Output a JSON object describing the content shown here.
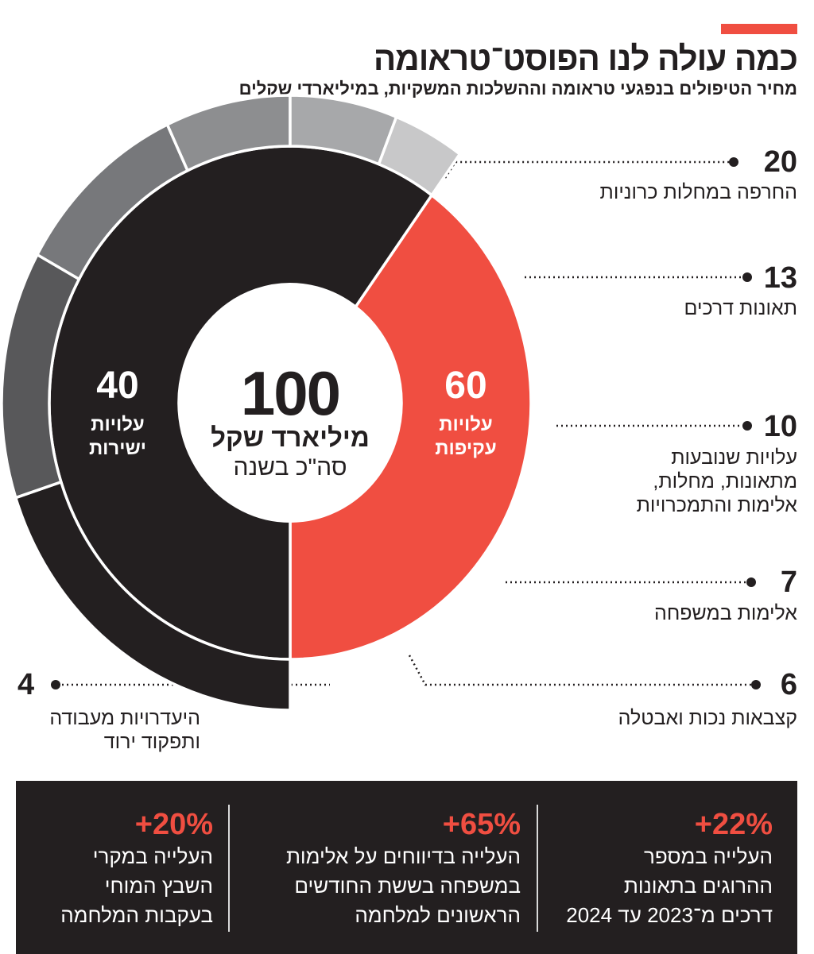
{
  "header": {
    "title": "כמה עולה לנו הפוסט־טראומה",
    "subtitle": "מחיר הטיפולים בנפגעי טראומה וההשלכות המשקיות, במיליארדי שקלים"
  },
  "colors": {
    "accent": "#f04e41",
    "dark": "#231f20"
  },
  "chart_data": {
    "type": "pie",
    "style": "nested-donut",
    "title": "כמה עולה לנו הפוסט־טראומה",
    "subtitle": "מחיר הטיפולים בנפגעי טראומה וההשלכות המשקיות, במיליארדי שקלים",
    "center": {
      "value": "100",
      "unit": "מיליארד שקל",
      "note": "סה\"כ בשנה"
    },
    "inner": [
      {
        "value": 40,
        "value_label": "40",
        "line1": "עלויות",
        "line2": "ישירות",
        "color": "#f04e41"
      },
      {
        "value": 60,
        "value_label": "60",
        "line1": "עלויות",
        "line2": "עקיפות",
        "color": "#231f20"
      }
    ],
    "outer": [
      {
        "value": 20,
        "value_label": "20",
        "label": [
          "החרפה במחלות כרוניות"
        ],
        "color": "#231f20"
      },
      {
        "value": 13,
        "value_label": "13",
        "label": [
          "תאונות דרכים"
        ],
        "color": "#58585a"
      },
      {
        "value": 10,
        "value_label": "10",
        "label": [
          "עלויות שנובעות",
          "מתאונות, מחלות,",
          "אלימות והתמכרויות"
        ],
        "color": "#77787b"
      },
      {
        "value": 7,
        "value_label": "7",
        "label": [
          "אלימות במשפחה"
        ],
        "color": "#8d8e90"
      },
      {
        "value": 6,
        "value_label": "6",
        "label": [
          "קצבאות נכות ואבטלה"
        ],
        "color": "#a7a8aa"
      },
      {
        "value": 4,
        "value_label": "4",
        "label": [
          "היעדרויות מעבודה",
          "ותפקוד ירוד"
        ],
        "color": "#c8c8c9"
      }
    ]
  },
  "stats": [
    {
      "value": "+22%",
      "lines": [
        "העלייה במספר",
        "ההרוגים בתאונות",
        "דרכים מ־2023 עד 2024"
      ]
    },
    {
      "value": "+65%",
      "lines": [
        "העלייה בדיווחים על אלימות",
        "במשפחה בששת החודשים",
        "הראשונים למלחמה"
      ]
    },
    {
      "value": "+20%",
      "lines": [
        "העלייה במקרי",
        "השבץ המוחי",
        "בעקבות המלחמה"
      ]
    }
  ]
}
